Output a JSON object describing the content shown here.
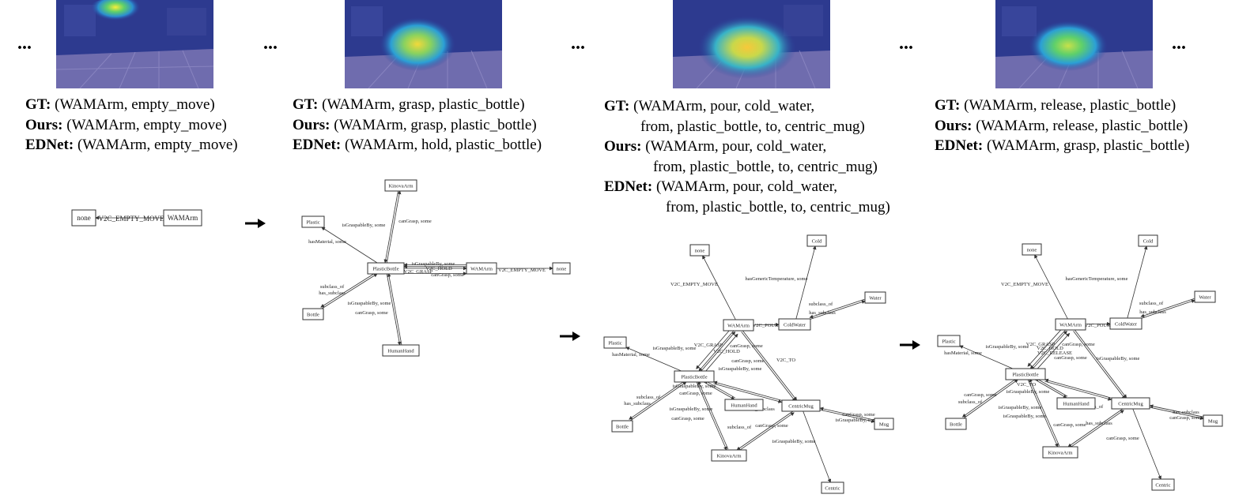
{
  "ellipsis": "...",
  "steps": [
    {
      "gt_label": "GT:",
      "gt": "(WAMArm, empty_move)",
      "ours_label": "Ours:",
      "ours": "(WAMArm, empty_move)",
      "ednet_label": "EDNet:",
      "ednet": "(WAMArm, empty_move)"
    },
    {
      "gt_label": "GT:",
      "gt": "(WAMArm, grasp, plastic_bottle)",
      "ours_label": "Ours:",
      "ours": "(WAMArm, grasp, plastic_bottle)",
      "ednet_label": "EDNet:",
      "ednet": "(WAMArm, hold, plastic_bottle)"
    },
    {
      "gt_label": "GT:",
      "gt": "(WAMArm, pour, cold_water,",
      "gt_cont": "from, plastic_bottle, to, centric_mug)",
      "ours_label": "Ours:",
      "ours": "(WAMArm, pour, cold_water,",
      "ours_cont": "from, plastic_bottle, to, centric_mug)",
      "ednet_label": "EDNet:",
      "ednet": "(WAMArm, pour, cold_water,",
      "ednet_cont": "from, plastic_bottle, to, centric_mug)"
    },
    {
      "gt_label": "GT:",
      "gt": "(WAMArm, release, plastic_bottle)",
      "ours_label": "Ours:",
      "ours": "(WAMArm, release, plastic_bottle)",
      "ednet_label": "EDNet:",
      "ednet": "(WAMArm, grasp, plastic_bottle)"
    }
  ],
  "graphs": [
    {
      "nodes": [
        "none",
        "WAMArm"
      ],
      "edges": [
        "V2C_EMPTY_MOVE"
      ]
    },
    {
      "nodes": [
        "KinovaArm",
        "Plastic",
        "PlasticBottle",
        "WAMArm",
        "none",
        "Bottle",
        "HumanHand"
      ],
      "edges": [
        "isGraspableBy, some",
        "canGrasp, some",
        "hasMaterial, some",
        "isGraspableBy, some",
        "V2C_HOLD",
        "V2C_GRASP",
        "canGrasp, some",
        "V2C_EMPTY_MOVE",
        "subclass_of",
        "has_subclass",
        "isGraspableBy, some",
        "canGrasp, some"
      ]
    },
    {
      "nodes": [
        "none",
        "Cold",
        "Water",
        "WAMArm",
        "ColdWater",
        "Plastic",
        "PlasticBottle",
        "HumanHand",
        "CentricMug",
        "Bottle",
        "Mug",
        "KinovaArm",
        "Centric"
      ],
      "edges": [
        "V2C_EMPTY_MOVE",
        "hasGenericTemperature, some",
        "subclass_of",
        "has_subclass",
        "V2C_POUR",
        "V2C_GRASP",
        "canGrasp, some",
        "isGraspableBy, some",
        "V2C_HOLD",
        "hasMaterial, some",
        "canGrasp, some",
        "isGraspableBy, some",
        "V2C_TO",
        "isGraspableBy, some",
        "canGrasp, some",
        "subclass_of",
        "has_subclass",
        "canGrasp, some",
        "isGraspableBy, some",
        "isGraspableBy, some",
        "canGrasp, some",
        "subclass_of",
        "has_subclass",
        "canGrasp, some",
        "isGraspableBy, some",
        "hasMaterial, some"
      ]
    },
    {
      "nodes": [
        "none",
        "Cold",
        "Water",
        "WAMArm",
        "ColdWater",
        "Plastic",
        "PlasticBottle",
        "HumanHand",
        "CentricMug",
        "Bottle",
        "Mug",
        "KinovaArm",
        "Centric"
      ],
      "edges": [
        "V2C_EMPTY_MOVE",
        "hasGenericTemperature, some",
        "subclass_of",
        "has_subclass",
        "V2C_POUR",
        "V2C_GRASP",
        "canGrasp, some",
        "isGraspableBy, some",
        "V2C_HOLD",
        "V2C_RELEASE",
        "hasMaterial, some",
        "canGrasp, some",
        "isGraspableBy, some",
        "V2C_TO",
        "isGraspableBy, some",
        "canGrasp, some",
        "subclass_of",
        "has_subclass",
        "canGrasp, some",
        "isGraspableBy, some",
        "isGraspableBy, some",
        "canGrasp, some",
        "subclass_of",
        "has_subclass",
        "canGrasp, some",
        "isGraspableBy, some",
        "hasMaterial, some"
      ]
    }
  ]
}
